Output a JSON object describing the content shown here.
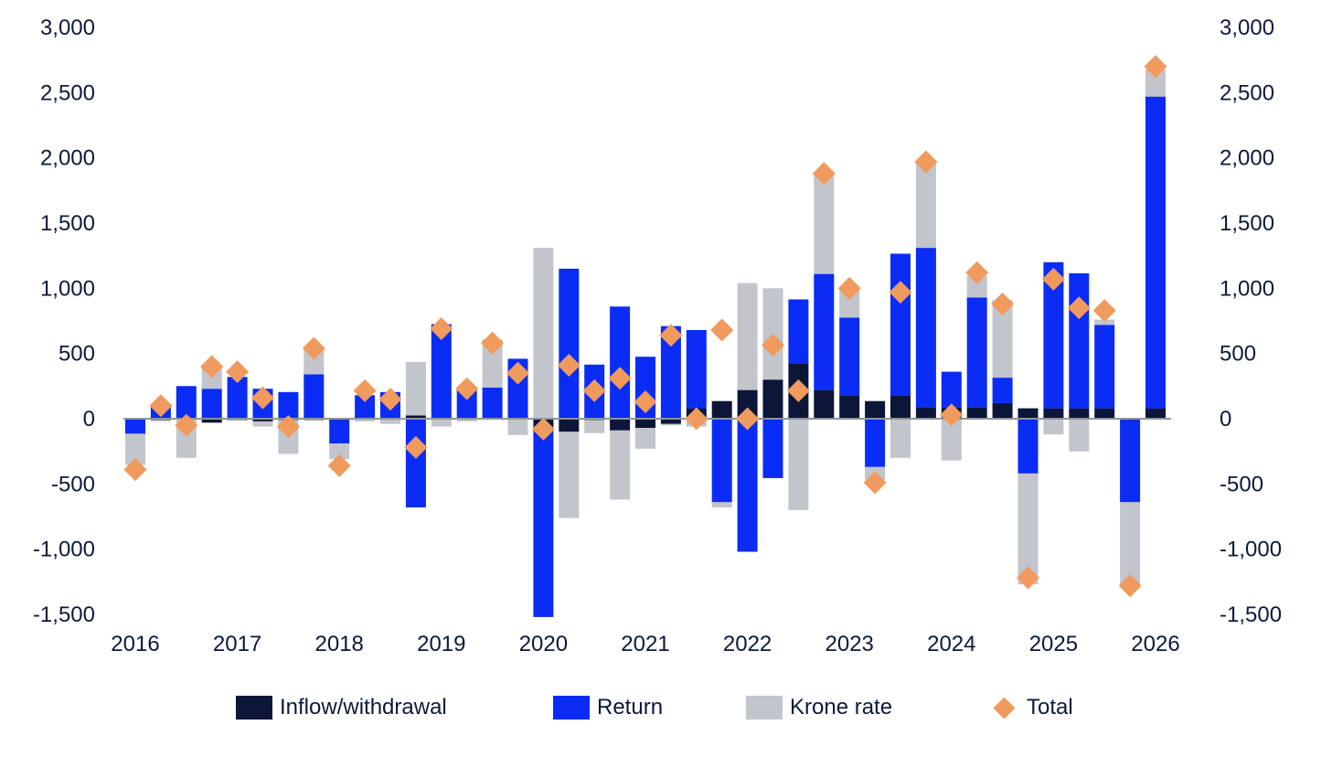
{
  "chart_data": {
    "type": "bar",
    "stacked": true,
    "x_tick_labels": [
      "2016",
      "2017",
      "2018",
      "2019",
      "2020",
      "2021",
      "2022",
      "2023",
      "2024",
      "2025",
      "2026"
    ],
    "y_ticks": [
      3000,
      2500,
      2000,
      1500,
      1000,
      500,
      0,
      -500,
      -1000,
      -1500
    ],
    "y_tick_labels": [
      "3,000",
      "2,500",
      "2,000",
      "1,500",
      "1,000",
      "500",
      "0",
      "-500",
      "-1,000",
      "-1,500"
    ],
    "ylim": [
      -1500,
      3000
    ],
    "secondary_axis_mirrors_primary": true,
    "legend_position": "bottom",
    "series": [
      {
        "name": "Inflow/withdrawal",
        "color": "#0b1638",
        "values": [
          0,
          -10,
          0,
          -30,
          -10,
          -20,
          -10,
          -10,
          -10,
          10,
          5,
          25,
          5,
          5,
          5,
          -5,
          -100,
          -100,
          -10,
          -90,
          -70,
          -40,
          80,
          135,
          220,
          300,
          425,
          220,
          175,
          135,
          175,
          90,
          90,
          90,
          120,
          80,
          80,
          80,
          80,
          -10,
          80
        ]
      },
      {
        "name": "Return",
        "color": "#0a2cf5",
        "values": [
          -115,
          110,
          250,
          230,
          320,
          230,
          205,
          340,
          -180,
          170,
          200,
          -680,
          720,
          235,
          235,
          460,
          -1420,
          1150,
          415,
          860,
          475,
          710,
          600,
          -640,
          -1020,
          -455,
          490,
          890,
          600,
          -370,
          1090,
          1220,
          270,
          840,
          195,
          -420,
          1120,
          1035,
          640,
          -630,
          2390
        ]
      },
      {
        "name": "Krone rate",
        "color": "#c2c5cb",
        "values": [
          -240,
          -10,
          -300,
          160,
          0,
          -40,
          -260,
          200,
          -120,
          -20,
          -40,
          410,
          -60,
          -20,
          370,
          -120,
          1310,
          -660,
          -100,
          -530,
          -160,
          -10,
          -60,
          -40,
          820,
          700,
          -700,
          780,
          210,
          -100,
          -300,
          650,
          -320,
          165,
          595,
          -850,
          -120,
          -250,
          40,
          -640,
          210
        ]
      }
    ],
    "total": {
      "name": "Total",
      "color": "#f09a5d",
      "values": [
        -390,
        100,
        -50,
        400,
        360,
        160,
        -60,
        540,
        -360,
        215,
        150,
        -220,
        690,
        230,
        580,
        350,
        -80,
        410,
        215,
        310,
        130,
        640,
        0,
        680,
        0,
        565,
        215,
        1880,
        1000,
        -490,
        970,
        1970,
        30,
        1120,
        880,
        -1220,
        1070,
        850,
        830,
        -1280,
        2700
      ]
    }
  }
}
